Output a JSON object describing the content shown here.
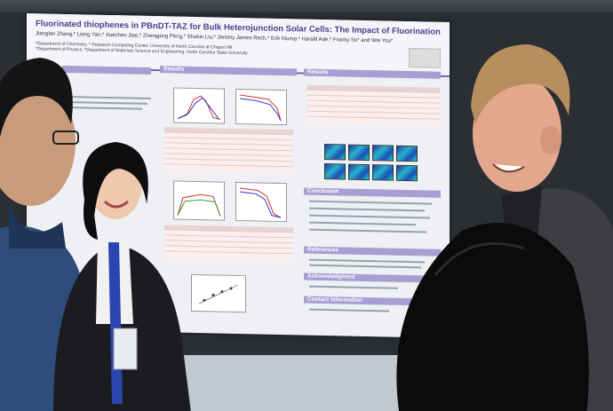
{
  "poster": {
    "title": "Fluorinated thiophenes in PBnDT-TAZ for Bulk Heterojunction Solar Cells: The Impact of Fluorination",
    "authors": "Jianglan Zhang,* Liang Yan,* Xuechen Jiao,* Zhengping Peng,* Shubin Liu,* Jeromy James Rech,* Erik Klump,* Harald Ade,* Franky So* and Wei You*",
    "affiliation_1": "*Department of Chemistry, * Research Computing Center, University of North Carolina at Chapel Hill",
    "affiliation_2": "*Department of Physics, *Department of Materials Science and Engineering, North Carolina State University",
    "sections": {
      "results_1": "Results",
      "results_2": "Results",
      "conclusion": "Conclusion",
      "references": "References",
      "acknowledgment": "Acknowledgment",
      "contact": "Contact Information"
    }
  }
}
